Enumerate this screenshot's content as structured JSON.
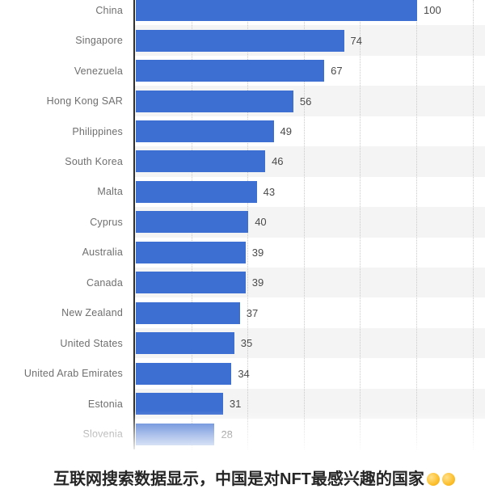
{
  "chart_data": {
    "type": "bar",
    "orientation": "horizontal",
    "title": "",
    "xlabel": "",
    "ylabel": "",
    "categories": [
      "China",
      "Singapore",
      "Venezuela",
      "Hong Kong SAR",
      "Philippines",
      "South Korea",
      "Malta",
      "Cyprus",
      "Australia",
      "Canada",
      "New Zealand",
      "United States",
      "United Arab Emirates",
      "Estonia",
      "Slovenia"
    ],
    "values": [
      100,
      74,
      67,
      56,
      49,
      46,
      43,
      40,
      39,
      39,
      37,
      35,
      34,
      31,
      28
    ],
    "xlim": [
      0,
      120
    ],
    "gridline_values": [
      20,
      40,
      60,
      80,
      100,
      120
    ],
    "grid": "dotted-vertical",
    "legend": "none",
    "bar_color": "#3d6ed1",
    "stripe_color": "#f4f4f4",
    "axis_color": "#2f2f2f",
    "label_color": "#6f6f6f",
    "value_color": "#4a4a4a",
    "last_row_faded": true
  },
  "caption": {
    "text": "互联网搜索数据显示，中国是对NFT最感兴趣的国家",
    "emoji_count": 2,
    "note": "text partially cut off at bottom edge of image"
  }
}
